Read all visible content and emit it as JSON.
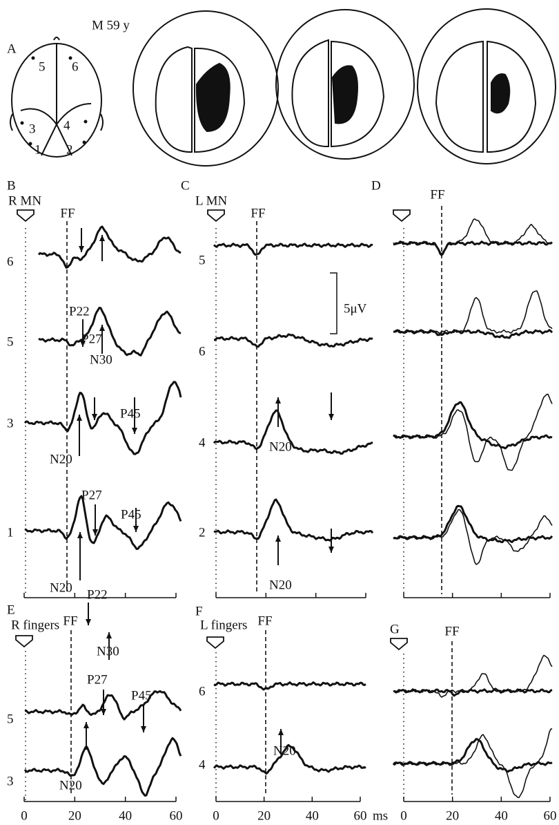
{
  "panel_a": {
    "label": "A",
    "subject": "M 59 y",
    "electrodes": [
      "5",
      "6",
      "3",
      "4",
      "1",
      "2"
    ]
  },
  "panel_b": {
    "label": "B",
    "stimulus": "R MN",
    "marker": "FF",
    "channels": [
      "6",
      "5",
      "3",
      "1"
    ],
    "peaks": [
      "P22",
      "N30",
      "P27",
      "N20",
      "P45",
      "P27",
      "P45",
      "N20"
    ]
  },
  "panel_c": {
    "label": "C",
    "stimulus": "L MN",
    "marker": "FF",
    "channels": [
      "5",
      "6",
      "4",
      "2"
    ],
    "peaks": [
      "N20",
      "N20"
    ],
    "scale": "5μV"
  },
  "panel_d": {
    "label": "D",
    "marker": "FF"
  },
  "panel_e": {
    "label": "E",
    "stimulus": "R fingers",
    "marker": "FF",
    "channels": [
      "5",
      "3"
    ],
    "peaks": [
      "P22",
      "N30",
      "P27",
      "N20",
      "P45"
    ]
  },
  "panel_f": {
    "label": "F",
    "stimulus": "L fingers",
    "marker": "FF",
    "channels": [
      "6",
      "4"
    ],
    "peaks": [
      "N20"
    ]
  },
  "panel_g": {
    "label": "G",
    "marker": "FF"
  },
  "time_axis": {
    "ticks": [
      "0",
      "20",
      "40",
      "60"
    ],
    "unit": "ms"
  }
}
